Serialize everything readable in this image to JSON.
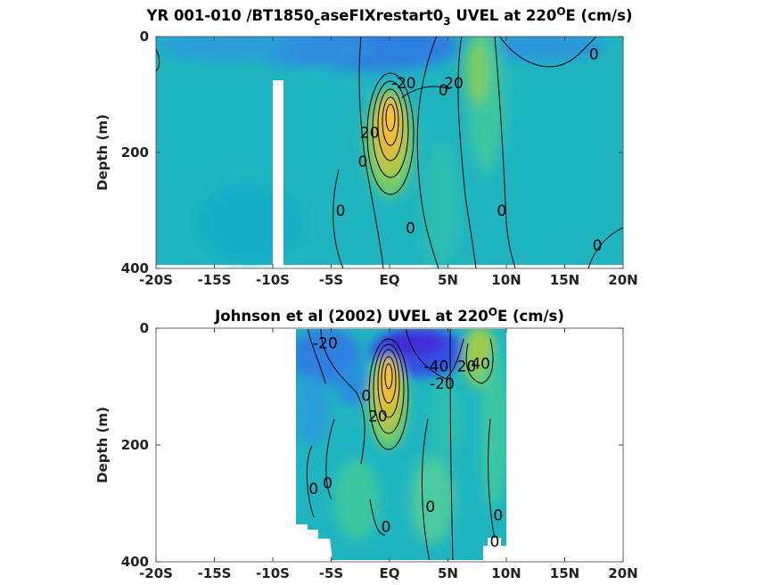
{
  "chart_data": [
    {
      "type": "heatmap",
      "title_parts": [
        "YR 001-010 /BT1850",
        "c",
        "aseFIXrestart0",
        "3",
        " UVEL at 220",
        "O",
        "E (cm/s)"
      ],
      "ylabel": "Depth (m)",
      "xlabel": "",
      "xlim": [
        -20,
        20
      ],
      "ylim": [
        0,
        400
      ],
      "y_reversed": true,
      "xticks": [
        -20,
        -15,
        -10,
        -5,
        0,
        5,
        10,
        15,
        20
      ],
      "xtick_labels": [
        "-20S",
        "-15S",
        "-10S",
        "-5S",
        "EQ",
        "5N",
        "10N",
        "15N",
        "20N"
      ],
      "yticks": [
        0,
        200,
        400
      ],
      "ytick_labels": [
        "0",
        "200",
        "400"
      ],
      "contour_interval": 20,
      "colormap": "parula",
      "data_extent": {
        "x": [
          -20,
          20
        ],
        "y": [
          0,
          395
        ]
      },
      "missing_columns": [
        {
          "x": [
            -10.1,
            -9.3
          ],
          "y": [
            77,
            400
          ]
        }
      ],
      "features": [
        {
          "name": "undercurrent core",
          "x": 0,
          "y": 140,
          "value": 100
        },
        {
          "name": "eastward jet north",
          "x": 6.8,
          "y": 80,
          "value": 40
        },
        {
          "name": "westward surface current",
          "x": 0,
          "y": 20,
          "value": -35
        },
        {
          "name": "westward surface current south",
          "x": -7,
          "y": 25,
          "value": -25
        },
        {
          "name": "westward surface current far north",
          "x": 15,
          "y": 25,
          "value": -20
        }
      ],
      "contour_labels": [
        {
          "text": "-20",
          "x": 1.2,
          "y": 80
        },
        {
          "text": "20",
          "x": 5.5,
          "y": 80
        },
        {
          "text": "0",
          "x": 4.6,
          "y": 92
        },
        {
          "text": "0",
          "x": 17.5,
          "y": 30
        },
        {
          "text": "20",
          "x": -1.7,
          "y": 165
        },
        {
          "text": "0",
          "x": -2.3,
          "y": 215
        },
        {
          "text": "0",
          "x": -4.2,
          "y": 300
        },
        {
          "text": "0",
          "x": 1.8,
          "y": 330
        },
        {
          "text": "0",
          "x": 9.6,
          "y": 300
        },
        {
          "text": "0",
          "x": 17.8,
          "y": 360
        }
      ]
    },
    {
      "type": "heatmap",
      "title_parts": [
        "Johnson et al (2002) UVEL at 220",
        "O",
        "E (cm/s)"
      ],
      "ylabel": "Depth (m)",
      "xlabel": "",
      "xlim": [
        -20,
        20
      ],
      "ylim": [
        0,
        400
      ],
      "y_reversed": true,
      "xticks": [
        -20,
        -15,
        -10,
        -5,
        0,
        5,
        10,
        15,
        20
      ],
      "xtick_labels": [
        "-20S",
        "-15S",
        "-10S",
        "-5S",
        "EQ",
        "5N",
        "10N",
        "15N",
        "20N"
      ],
      "yticks": [
        0,
        200,
        400
      ],
      "ytick_labels": [
        "0",
        "200",
        "400"
      ],
      "contour_interval": 20,
      "colormap": "parula",
      "data_extent": {
        "x": [
          -8,
          10
        ],
        "y": [
          0,
          400
        ]
      },
      "features": [
        {
          "name": "undercurrent core",
          "x": 0,
          "y": 105,
          "value": 110
        },
        {
          "name": "eastward jet north",
          "x": 8,
          "y": 45,
          "value": 45
        },
        {
          "name": "westward surface current",
          "x": 3,
          "y": 30,
          "value": -50
        },
        {
          "name": "westward surface current south",
          "x": -6,
          "y": 35,
          "value": -35
        }
      ],
      "contour_labels": [
        {
          "text": "-20",
          "x": -5.5,
          "y": 25
        },
        {
          "text": "-40",
          "x": 4,
          "y": 65
        },
        {
          "text": "-20",
          "x": 4.5,
          "y": 95
        },
        {
          "text": "20",
          "x": 6.6,
          "y": 65
        },
        {
          "text": "40",
          "x": 7.8,
          "y": 60
        },
        {
          "text": "0",
          "x": -2,
          "y": 115
        },
        {
          "text": "20",
          "x": -1,
          "y": 150
        },
        {
          "text": "0",
          "x": -6.5,
          "y": 275
        },
        {
          "text": "0",
          "x": -5.3,
          "y": 265
        },
        {
          "text": "0",
          "x": 3.5,
          "y": 305
        },
        {
          "text": "0",
          "x": -0.3,
          "y": 340
        },
        {
          "text": "0",
          "x": 9.3,
          "y": 320
        },
        {
          "text": "0",
          "x": 9,
          "y": 365
        }
      ]
    }
  ]
}
